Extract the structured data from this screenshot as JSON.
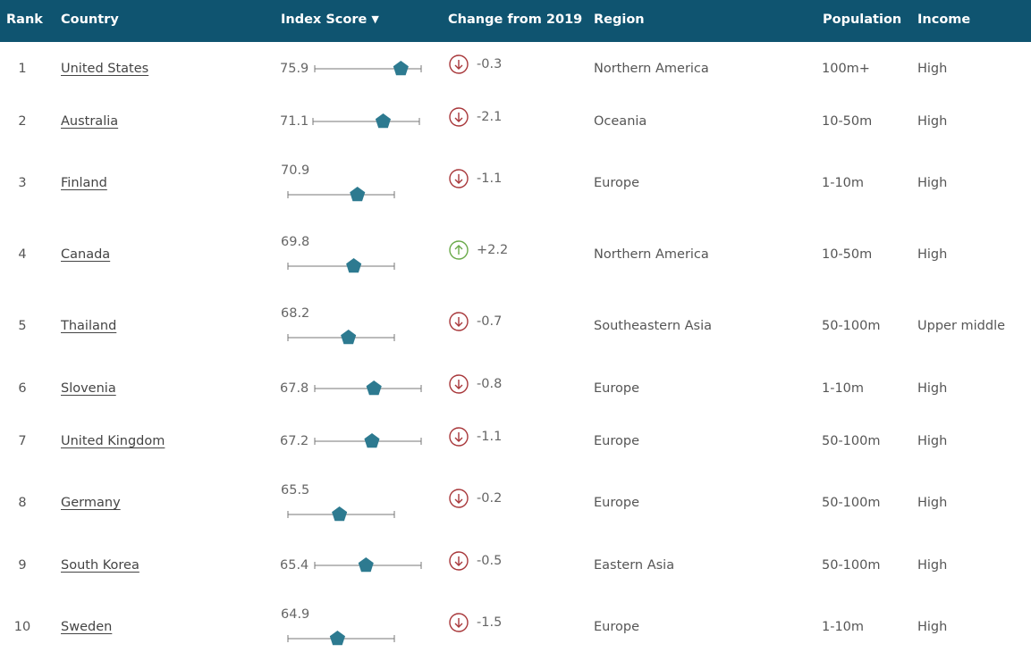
{
  "table": {
    "headers": {
      "rank": "Rank",
      "country": "Country",
      "score": "Index Score",
      "change": "Change from 2019",
      "region": "Region",
      "population": "Population",
      "income": "Income"
    },
    "sort_icon": "caret-down-icon",
    "colors": {
      "header_bg": "#0f5470",
      "marker": "#2d7a90",
      "decrease": "#a8373a",
      "increase": "#6aaa4a"
    },
    "rows": [
      {
        "rank": "1",
        "country": "United States",
        "score": "75.9",
        "score_value": 75.9,
        "change": "-0.3",
        "direction": "down",
        "region": "Northern America",
        "population": "100m+",
        "income": "High"
      },
      {
        "rank": "2",
        "country": "Australia",
        "score": "71.1",
        "score_value": 71.1,
        "change": "-2.1",
        "direction": "down",
        "region": "Oceania",
        "population": "10-50m",
        "income": "High"
      },
      {
        "rank": "3",
        "country": "Finland",
        "score": "70.9",
        "score_value": 70.9,
        "change": "-1.1",
        "direction": "down",
        "region": "Europe",
        "population": "1-10m",
        "income": "High"
      },
      {
        "rank": "4",
        "country": "Canada",
        "score": "69.8",
        "score_value": 69.8,
        "change": "+2.2",
        "direction": "up",
        "region": "Northern America",
        "population": "10-50m",
        "income": "High"
      },
      {
        "rank": "5",
        "country": "Thailand",
        "score": "68.2",
        "score_value": 68.2,
        "change": "-0.7",
        "direction": "down",
        "region": "Southeastern Asia",
        "population": "50-100m",
        "income": "Upper middle"
      },
      {
        "rank": "6",
        "country": "Slovenia",
        "score": "67.8",
        "score_value": 67.8,
        "change": "-0.8",
        "direction": "down",
        "region": "Europe",
        "population": "1-10m",
        "income": "High"
      },
      {
        "rank": "7",
        "country": "United Kingdom",
        "score": "67.2",
        "score_value": 67.2,
        "change": "-1.1",
        "direction": "down",
        "region": "Europe",
        "population": "50-100m",
        "income": "High"
      },
      {
        "rank": "8",
        "country": "Germany",
        "score": "65.5",
        "score_value": 65.5,
        "change": "-0.2",
        "direction": "down",
        "region": "Europe",
        "population": "50-100m",
        "income": "High"
      },
      {
        "rank": "9",
        "country": "South Korea",
        "score": "65.4",
        "score_value": 65.4,
        "change": "-0.5",
        "direction": "down",
        "region": "Eastern Asia",
        "population": "50-100m",
        "income": "High"
      },
      {
        "rank": "10",
        "country": "Sweden",
        "score": "64.9",
        "score_value": 64.9,
        "change": "-1.5",
        "direction": "down",
        "region": "Europe",
        "population": "1-10m",
        "income": "High"
      }
    ]
  }
}
